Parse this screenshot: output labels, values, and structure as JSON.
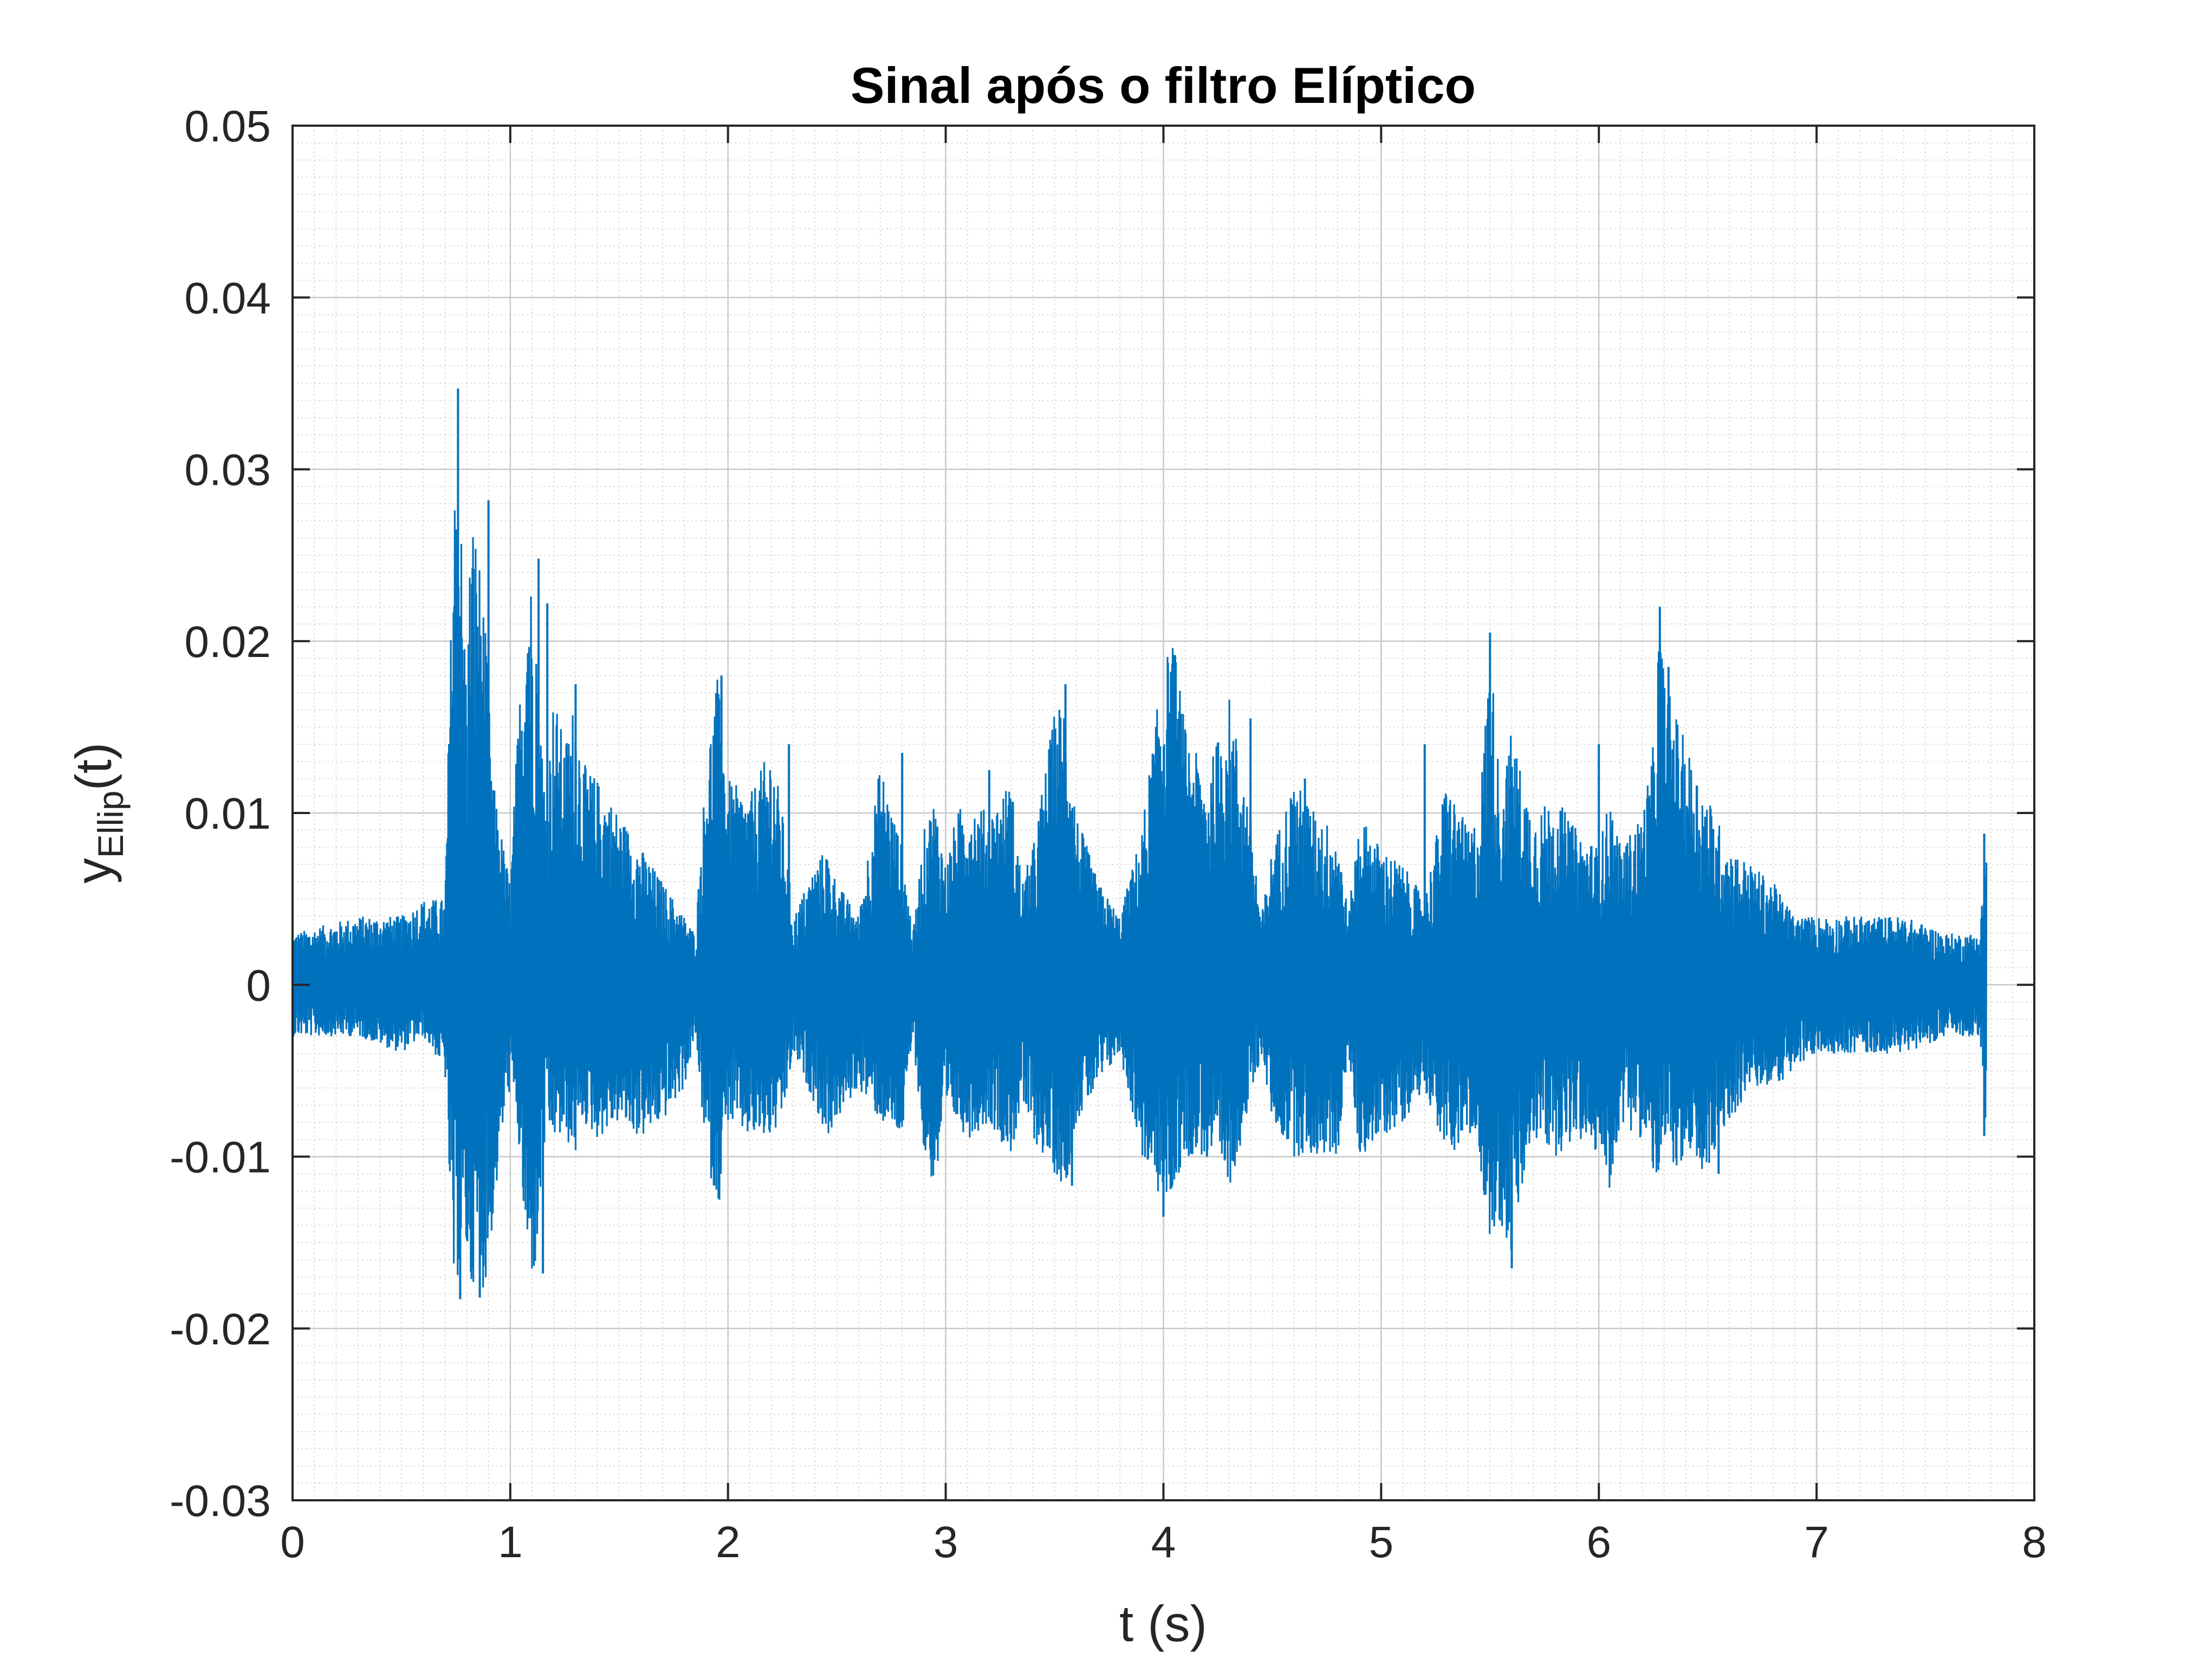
{
  "chart_data": {
    "type": "line",
    "title": "Sinal após o filtro Elíptico",
    "xlabel": "t (s)",
    "ylabel": {
      "base": "y",
      "subscript": "Ellip",
      "suffix": "(t)"
    },
    "xlim": [
      0,
      8
    ],
    "ylim": [
      -0.03,
      0.05
    ],
    "xticks": [
      0,
      1,
      2,
      3,
      4,
      5,
      6,
      7,
      8
    ],
    "xtick_labels": [
      "0",
      "1",
      "2",
      "3",
      "4",
      "5",
      "6",
      "7",
      "8"
    ],
    "yticks": [
      -0.03,
      -0.02,
      -0.01,
      0,
      0.01,
      0.02,
      0.03,
      0.04,
      0.05
    ],
    "ytick_labels": [
      "-0.03",
      "-0.02",
      "-0.01",
      "0",
      "0.01",
      "0.02",
      "0.03",
      "0.04",
      "0.05"
    ],
    "grid": "on",
    "minor_grid": "on",
    "series": [
      {
        "color": "#0072BD",
        "t_end": 7.78,
        "envelope": {
          "t": [
            0.0,
            0.3,
            0.5,
            0.6,
            0.7,
            0.74,
            0.76,
            0.78,
            0.8,
            0.82,
            0.85,
            0.88,
            0.92,
            0.97,
            1.0,
            1.03,
            1.08,
            1.12,
            1.15,
            1.17,
            1.2,
            1.25,
            1.3,
            1.33,
            1.4,
            1.5,
            1.6,
            1.7,
            1.8,
            1.85,
            1.9,
            1.95,
            2.0,
            2.1,
            2.2,
            2.25,
            2.3,
            2.4,
            2.45,
            2.5,
            2.6,
            2.7,
            2.8,
            2.85,
            2.9,
            2.95,
            3.0,
            3.05,
            3.1,
            3.2,
            3.3,
            3.35,
            3.4,
            3.5,
            3.55,
            3.6,
            3.7,
            3.8,
            3.9,
            4.0,
            4.05,
            4.1,
            4.2,
            4.3,
            4.4,
            4.45,
            4.5,
            4.6,
            4.7,
            4.8,
            4.85,
            4.9,
            5.0,
            5.1,
            5.2,
            5.3,
            5.4,
            5.45,
            5.5,
            5.55,
            5.6,
            5.65,
            5.7,
            5.8,
            5.9,
            6.0,
            6.05,
            6.1,
            6.2,
            6.25,
            6.28,
            6.3,
            6.4,
            6.5,
            6.6,
            6.7,
            6.8,
            6.9,
            7.0,
            7.2,
            7.4,
            7.6,
            7.75,
            7.78
          ],
          "upper": [
            0.003,
            0.004,
            0.004,
            0.005,
            0.005,
            0.028,
            0.035,
            0.024,
            0.018,
            0.028,
            0.026,
            0.022,
            0.012,
            0.008,
            0.006,
            0.014,
            0.025,
            0.022,
            0.013,
            0.012,
            0.017,
            0.014,
            0.017,
            0.013,
            0.012,
            0.01,
            0.008,
            0.006,
            0.004,
            0.003,
            0.013,
            0.018,
            0.012,
            0.011,
            0.014,
            0.01,
            0.004,
            0.007,
            0.008,
            0.006,
            0.004,
            0.013,
            0.008,
            0.003,
            0.009,
            0.011,
            0.007,
            0.01,
            0.011,
            0.01,
            0.012,
            0.006,
            0.008,
            0.016,
            0.017,
            0.01,
            0.006,
            0.004,
            0.009,
            0.019,
            0.02,
            0.015,
            0.012,
            0.017,
            0.01,
            0.004,
            0.008,
            0.012,
            0.01,
            0.009,
            0.004,
            0.01,
            0.008,
            0.007,
            0.005,
            0.012,
            0.009,
            0.01,
            0.02,
            0.011,
            0.015,
            0.012,
            0.01,
            0.011,
            0.009,
            0.008,
            0.011,
            0.008,
            0.01,
            0.014,
            0.022,
            0.018,
            0.014,
            0.011,
            0.008,
            0.007,
            0.006,
            0.004,
            0.004,
            0.004,
            0.004,
            0.003,
            0.003,
            0.009
          ],
          "lower": [
            -0.003,
            -0.003,
            -0.004,
            -0.003,
            -0.005,
            -0.018,
            -0.017,
            -0.015,
            -0.016,
            -0.018,
            -0.016,
            -0.018,
            -0.014,
            -0.008,
            -0.006,
            -0.008,
            -0.017,
            -0.017,
            -0.01,
            -0.009,
            -0.009,
            -0.009,
            -0.01,
            -0.008,
            -0.009,
            -0.008,
            -0.009,
            -0.008,
            -0.006,
            -0.003,
            -0.01,
            -0.013,
            -0.008,
            -0.009,
            -0.009,
            -0.008,
            -0.004,
            -0.007,
            -0.009,
            -0.008,
            -0.006,
            -0.008,
            -0.009,
            -0.003,
            -0.01,
            -0.012,
            -0.008,
            -0.008,
            -0.009,
            -0.008,
            -0.01,
            -0.007,
            -0.009,
            -0.011,
            -0.012,
            -0.008,
            -0.006,
            -0.004,
            -0.01,
            -0.013,
            -0.012,
            -0.01,
            -0.01,
            -0.012,
            -0.007,
            -0.004,
            -0.008,
            -0.01,
            -0.01,
            -0.01,
            -0.004,
            -0.01,
            -0.009,
            -0.008,
            -0.006,
            -0.01,
            -0.009,
            -0.01,
            -0.015,
            -0.014,
            -0.016,
            -0.012,
            -0.009,
            -0.01,
            -0.009,
            -0.01,
            -0.012,
            -0.008,
            -0.009,
            -0.011,
            -0.012,
            -0.01,
            -0.011,
            -0.011,
            -0.008,
            -0.006,
            -0.006,
            -0.005,
            -0.004,
            -0.004,
            -0.004,
            -0.003,
            -0.003,
            -0.009
          ]
        },
        "peaks": [
          {
            "t": 0.76,
            "v": 0.0347
          },
          {
            "t": 0.75,
            "v": 0.0265
          },
          {
            "t": 0.77,
            "v": -0.0183
          },
          {
            "t": 0.9,
            "v": 0.0282
          },
          {
            "t": 0.86,
            "v": -0.0182
          },
          {
            "t": 1.13,
            "v": 0.0248
          },
          {
            "t": 1.17,
            "v": 0.0222
          },
          {
            "t": 1.15,
            "v": -0.0168
          },
          {
            "t": 1.3,
            "v": 0.0175
          },
          {
            "t": 1.97,
            "v": 0.018
          },
          {
            "t": 1.96,
            "v": -0.0125
          },
          {
            "t": 2.28,
            "v": 0.014
          },
          {
            "t": 2.8,
            "v": 0.0135
          },
          {
            "t": 3.2,
            "v": 0.0125
          },
          {
            "t": 3.55,
            "v": 0.0175
          },
          {
            "t": 3.58,
            "v": -0.0117
          },
          {
            "t": 4.05,
            "v": 0.0192
          },
          {
            "t": 4.0,
            "v": -0.0135
          },
          {
            "t": 4.2,
            "v": -0.01
          },
          {
            "t": 4.4,
            "v": 0.0155
          },
          {
            "t": 4.65,
            "v": 0.012
          },
          {
            "t": 5.2,
            "v": 0.014
          },
          {
            "t": 5.5,
            "v": 0.0205
          },
          {
            "t": 5.6,
            "v": -0.0165
          },
          {
            "t": 6.0,
            "v": 0.014
          },
          {
            "t": 6.28,
            "v": 0.022
          },
          {
            "t": 6.32,
            "v": 0.0185
          },
          {
            "t": 6.55,
            "v": -0.011
          },
          {
            "t": 7.77,
            "v": 0.0088
          },
          {
            "t": 7.77,
            "v": -0.0088
          }
        ]
      }
    ]
  }
}
